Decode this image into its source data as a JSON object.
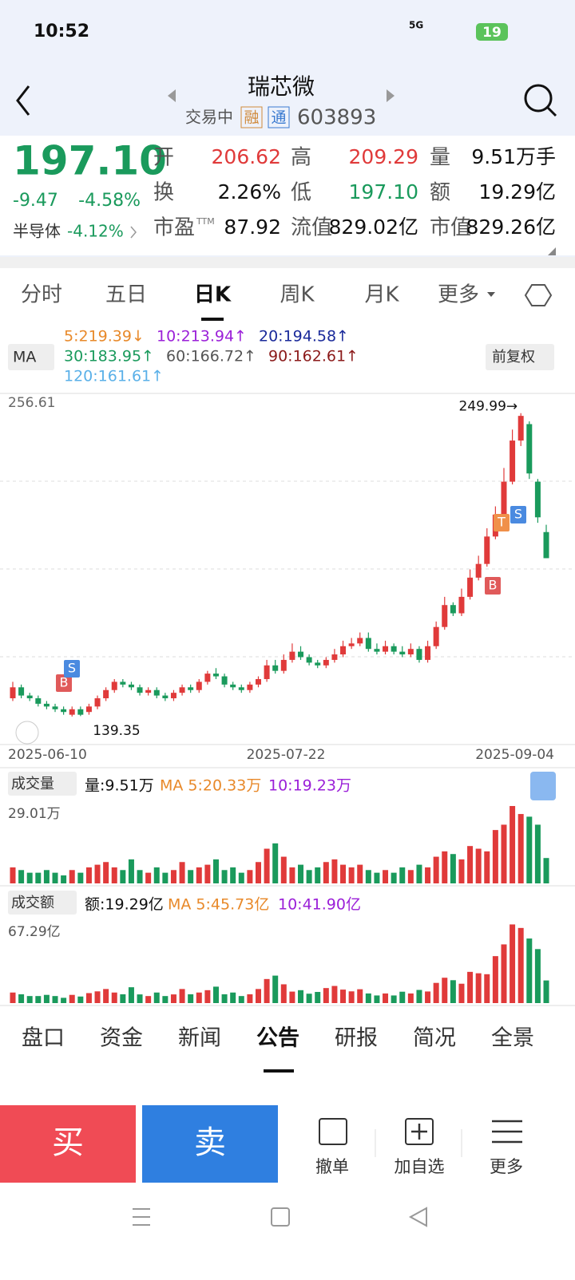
{
  "status": {
    "time": "10:52",
    "network": "5G",
    "battery": "19"
  },
  "header": {
    "title": "瑞芯微",
    "state": "交易中",
    "tags": [
      "融",
      "通"
    ],
    "code": "603893"
  },
  "quote": {
    "price": "197.10",
    "change": "-9.47",
    "change_pct": "-4.58%",
    "sector": "半导体",
    "sector_pct": "-4.12%",
    "fields": [
      {
        "label": "开",
        "value": "206.62"
      },
      {
        "label": "高",
        "value": "209.29"
      },
      {
        "label": "量",
        "value": "9.51万手"
      },
      {
        "label": "换",
        "value": "2.26%"
      },
      {
        "label": "低",
        "value": "197.10"
      },
      {
        "label": "额",
        "value": "19.29亿"
      },
      {
        "label": "市盈",
        "sup": "TTM",
        "value": "87.92"
      },
      {
        "label": "流值",
        "value": "829.02亿"
      },
      {
        "label": "市值",
        "value": "829.26亿"
      }
    ]
  },
  "tabs": [
    "分时",
    "五日",
    "日K",
    "周K",
    "月K",
    "更多"
  ],
  "ma": {
    "button": "MA",
    "adjust": "前复权",
    "items": [
      "5:219.39↓",
      "10:213.94↑",
      "20:194.58↑",
      "30:183.95↑",
      "60:166.72↑",
      "90:162.61↑",
      "120:161.61↑"
    ]
  },
  "kline": {
    "top_label": "256.61",
    "high_label": "249.99→",
    "low_label": "139.35",
    "ylim": [
      130,
      256.61
    ],
    "dates": [
      "2025-06-10",
      "2025-07-22",
      "2025-09-04"
    ],
    "signals": [
      "B",
      "S",
      "B",
      "T",
      "S"
    ],
    "open": [
      146,
      150,
      147,
      146,
      144,
      143,
      142,
      140,
      142,
      141,
      143,
      146,
      149,
      152,
      151,
      150,
      148,
      149,
      147,
      146,
      148,
      150,
      149,
      152,
      155,
      154,
      151,
      150,
      149,
      151,
      153,
      158,
      156,
      160,
      163,
      161,
      159,
      158,
      160,
      162,
      165,
      166,
      168,
      164,
      163,
      165,
      163,
      162,
      164,
      160,
      165,
      172,
      180,
      177,
      183,
      190,
      195,
      205,
      213,
      225,
      240,
      246,
      225,
      206.62
    ],
    "close": [
      150,
      147,
      146,
      144,
      143,
      142,
      141,
      142,
      140,
      143,
      146,
      149,
      152,
      151,
      150,
      148,
      149,
      147,
      146,
      148,
      150,
      149,
      152,
      155,
      154,
      151,
      150,
      149,
      151,
      153,
      158,
      156,
      160,
      163,
      161,
      159,
      158,
      160,
      162,
      165,
      166,
      168,
      164,
      163,
      165,
      163,
      162,
      164,
      160,
      165,
      172,
      180,
      177,
      183,
      190,
      195,
      205,
      213,
      225,
      240,
      249,
      228,
      212,
      197.1
    ],
    "high": [
      152,
      151,
      148,
      147,
      145,
      144,
      143,
      143,
      143,
      144,
      147,
      150,
      153,
      153,
      152,
      151,
      150,
      150,
      148,
      149,
      151,
      151,
      153,
      156,
      157,
      155,
      152,
      151,
      152,
      154,
      160,
      160,
      162,
      166,
      165,
      162,
      160,
      161,
      164,
      167,
      168,
      170,
      170,
      166,
      167,
      166,
      165,
      166,
      165,
      167,
      174,
      183,
      181,
      186,
      193,
      198,
      208,
      216,
      230,
      244,
      249.99,
      247,
      226,
      209.29
    ],
    "low": [
      145,
      146,
      145,
      143,
      142,
      141,
      140,
      139.35,
      139.5,
      140,
      142,
      145,
      148,
      150,
      149,
      147,
      147,
      146,
      145,
      145,
      147,
      148,
      148,
      151,
      153,
      150,
      149,
      148,
      148,
      150,
      152,
      155,
      155,
      159,
      160,
      158,
      157,
      157,
      159,
      161,
      164,
      165,
      163,
      162,
      162,
      162,
      161,
      161,
      159,
      159,
      164,
      171,
      176,
      176,
      182,
      189,
      194,
      204,
      212,
      224,
      238,
      226,
      210,
      197.1
    ]
  },
  "volume": {
    "button": "成交量",
    "current": "量:9.51万",
    "ma5": "MA 5:20.33万",
    "ma10": "10:19.23万",
    "top_label": "29.01万",
    "ylim": [
      0,
      29.01
    ],
    "values": [
      6,
      5,
      4,
      4,
      5,
      4,
      3,
      5,
      4,
      6,
      7,
      8,
      6,
      5,
      9,
      5,
      4,
      6,
      4,
      5,
      8,
      5,
      6,
      7,
      9,
      5,
      6,
      4,
      5,
      8,
      13,
      15,
      10,
      6,
      7,
      5,
      6,
      8,
      9,
      7,
      6,
      7,
      5,
      4,
      5,
      4,
      6,
      5,
      7,
      6,
      10,
      12,
      11,
      9,
      14,
      13,
      12,
      20,
      22,
      29,
      26,
      25,
      22,
      9.51
    ]
  },
  "amount": {
    "button": "成交额",
    "current": "额:19.29亿",
    "ma5": "MA 5:45.73亿",
    "ma10": "10:41.90亿",
    "top_label": "67.29亿",
    "ylim": [
      0,
      67.29
    ],
    "values": [
      9,
      7.5,
      6,
      6,
      7,
      6,
      4.5,
      7,
      5.6,
      8.5,
      10,
      12,
      9,
      7.5,
      13.5,
      7.4,
      6,
      9,
      6,
      7.4,
      12,
      7.5,
      9,
      11,
      14,
      7.5,
      9,
      6,
      7.5,
      12,
      20.5,
      23.4,
      16,
      9.8,
      11,
      8,
      9.5,
      12.8,
      14.6,
      11.5,
      10,
      11.8,
      8.2,
      6.5,
      8.2,
      6.5,
      9.7,
      8.2,
      11.2,
      9.9,
      17.2,
      21.6,
      19.5,
      16.5,
      26.6,
      25.4,
      24.6,
      40,
      50,
      67,
      64,
      55,
      46,
      19.29
    ]
  },
  "bottom_tabs": [
    "盘口",
    "资金",
    "新闻",
    "公告",
    "研报",
    "简况",
    "全景"
  ],
  "actions": {
    "buy": "买",
    "sell": "卖",
    "items": [
      "撤单",
      "加自选",
      "更多"
    ]
  }
}
